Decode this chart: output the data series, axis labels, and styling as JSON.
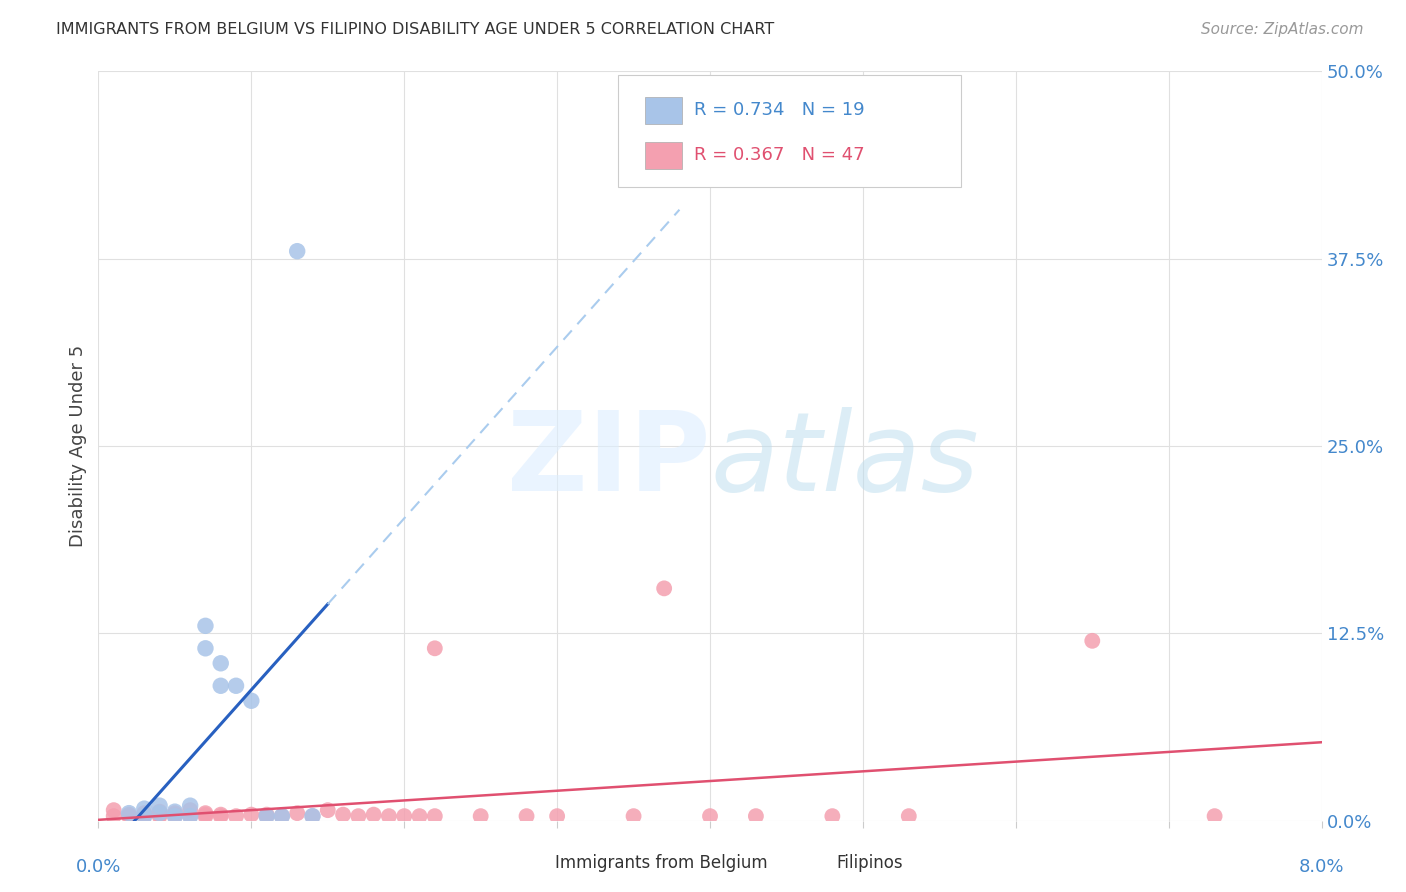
{
  "title": "IMMIGRANTS FROM BELGIUM VS FILIPINO DISABILITY AGE UNDER 5 CORRELATION CHART",
  "source": "Source: ZipAtlas.com",
  "ylabel": "Disability Age Under 5",
  "ytick_vals": [
    0.0,
    0.125,
    0.25,
    0.375,
    0.5
  ],
  "ytick_labels": [
    "0.0%",
    "12.5%",
    "25.0%",
    "37.5%",
    "50.0%"
  ],
  "xlim": [
    0.0,
    0.08
  ],
  "ylim": [
    0.0,
    0.5
  ],
  "legend_blue_r": "0.734",
  "legend_blue_n": "19",
  "legend_pink_r": "0.367",
  "legend_pink_n": "47",
  "legend_label1": "Immigrants from Belgium",
  "legend_label2": "Filipinos",
  "blue_scatter_color": "#a8c4e8",
  "pink_scatter_color": "#f4a0b0",
  "blue_line_color": "#2860c0",
  "pink_line_color": "#e05070",
  "blue_dash_color": "#aaccee",
  "grid_color": "#e0e0e0",
  "blue_x": [
    0.002,
    0.003,
    0.003,
    0.004,
    0.004,
    0.005,
    0.005,
    0.006,
    0.006,
    0.007,
    0.007,
    0.008,
    0.008,
    0.009,
    0.01,
    0.011,
    0.012,
    0.013,
    0.014
  ],
  "blue_y": [
    0.005,
    0.003,
    0.008,
    0.005,
    0.01,
    0.006,
    0.003,
    0.01,
    0.003,
    0.13,
    0.115,
    0.09,
    0.105,
    0.09,
    0.08,
    0.003,
    0.003,
    0.38,
    0.003
  ],
  "pink_x": [
    0.001,
    0.001,
    0.002,
    0.002,
    0.003,
    0.003,
    0.003,
    0.004,
    0.004,
    0.004,
    0.005,
    0.005,
    0.005,
    0.006,
    0.006,
    0.007,
    0.007,
    0.007,
    0.008,
    0.008,
    0.009,
    0.01,
    0.011,
    0.011,
    0.012,
    0.013,
    0.014,
    0.015,
    0.016,
    0.017,
    0.018,
    0.019,
    0.02,
    0.021,
    0.022,
    0.022,
    0.025,
    0.028,
    0.03,
    0.035,
    0.037,
    0.04,
    0.043,
    0.048,
    0.053,
    0.065,
    0.073
  ],
  "pink_y": [
    0.003,
    0.007,
    0.004,
    0.003,
    0.004,
    0.003,
    0.005,
    0.006,
    0.003,
    0.004,
    0.003,
    0.005,
    0.004,
    0.003,
    0.007,
    0.003,
    0.005,
    0.004,
    0.003,
    0.004,
    0.003,
    0.004,
    0.004,
    0.003,
    0.003,
    0.005,
    0.003,
    0.007,
    0.004,
    0.003,
    0.004,
    0.003,
    0.003,
    0.003,
    0.115,
    0.003,
    0.003,
    0.003,
    0.003,
    0.003,
    0.155,
    0.003,
    0.003,
    0.003,
    0.003,
    0.12,
    0.003
  ]
}
